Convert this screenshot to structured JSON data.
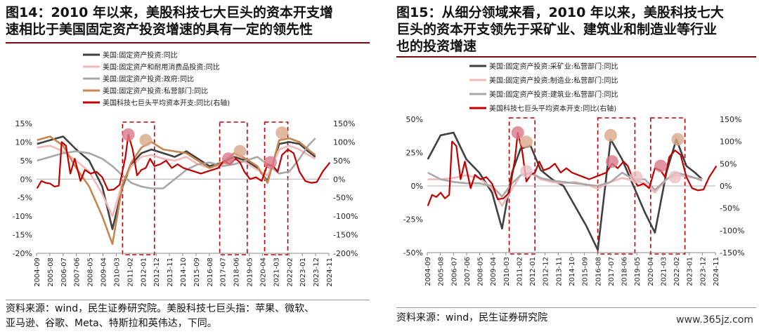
{
  "panels": [
    {
      "id": "left",
      "title_line1": "图14：2010 年以来，美股科技七大巨头的资本开支增",
      "title_line2": "速相比于美国固定资产投资增速的具有一定的领先性",
      "source_line1": "资料来源：wind，民生证券研究院。美股科技七巨头指：苹果、微软、",
      "source_line2": "亚马逊、谷歌、Meta、特斯拉和英伟达，下同。"
    },
    {
      "id": "right",
      "title_line1": "图15：从细分领域来看，2010 年以来，美股科技七大",
      "title_line2": "巨头的资本开支领先于采矿业、建筑业和制造业等行业",
      "title_line3": "也的投资增速",
      "source_line1": "资料来源：wind，民生证券研究院",
      "watermark": "www.365jz.com"
    }
  ],
  "chart_data": [
    {
      "type": "line",
      "ylim": [
        -20,
        15
      ],
      "yticks": [
        "15%",
        "10%",
        "5%",
        "0%",
        "-5%",
        "-10%",
        "-15%",
        "-20%"
      ],
      "y2lim": [
        -200,
        150
      ],
      "y2ticks": [
        "150%",
        "100%",
        "50%",
        "0%",
        "-50%",
        "-100%",
        "-150%",
        "-200%"
      ],
      "xticks": [
        "2004-09",
        "2005-08",
        "2006-07",
        "2007-06",
        "2008-05",
        "2009-04",
        "2010-03",
        "2011-02",
        "2012-01",
        "2012-12",
        "2013-11",
        "2014-10",
        "2015-09",
        "2016-08",
        "2017-07",
        "2018-06",
        "2019-05",
        "2020-04",
        "2021-03",
        "2022-02",
        "2023-01",
        "2023-12",
        "2024-11"
      ],
      "legend": "top-left",
      "series": [
        {
          "name": "美国:固定资产投资:同比",
          "color": "#404040",
          "axis": "left",
          "x": [
            2004.7,
            2005.6,
            2006.5,
            2007.4,
            2008.3,
            2009.2,
            2009.9,
            2010.6,
            2011.2,
            2011.9,
            2012.6,
            2013.4,
            2014.2,
            2015.0,
            2015.8,
            2016.6,
            2017.5,
            2018.3,
            2019.1,
            2019.9,
            2020.6,
            2021.4,
            2022.1,
            2022.8,
            2023.4,
            2023.9
          ],
          "y": [
            9.5,
            10.5,
            11.5,
            8.0,
            5.0,
            -2.0,
            -13.5,
            -2.0,
            4.0,
            7.0,
            8.0,
            7.0,
            6.0,
            7.5,
            5.5,
            3.5,
            4.5,
            6.0,
            5.0,
            3.0,
            -0.5,
            9.5,
            10.0,
            9.5,
            7.5,
            6.0
          ]
        },
        {
          "name": "美国:固定资产和耐用消费品投资:同比",
          "color": "#f2b7b7",
          "axis": "left",
          "x": [
            2004.7,
            2005.6,
            2006.5,
            2007.4,
            2008.3,
            2009.2,
            2009.9,
            2010.6,
            2011.2,
            2011.9,
            2012.6,
            2013.4,
            2014.2,
            2015.0,
            2015.8,
            2016.6,
            2017.5,
            2018.3,
            2019.1,
            2019.9,
            2020.6,
            2021.4,
            2022.1,
            2022.8,
            2023.4,
            2023.9
          ],
          "y": [
            8.5,
            9.0,
            7.5,
            5.0,
            2.0,
            -4.0,
            -10.0,
            -1.0,
            3.5,
            6.0,
            6.5,
            5.5,
            5.0,
            6.0,
            4.0,
            3.0,
            4.0,
            5.5,
            4.5,
            2.5,
            1.0,
            8.0,
            9.0,
            8.0,
            6.5,
            5.5
          ]
        },
        {
          "name": "美国:固定资产投资:政府:同比",
          "color": "#a8a8a8",
          "axis": "left",
          "x": [
            2004.7,
            2005.6,
            2006.5,
            2007.4,
            2008.3,
            2009.2,
            2009.9,
            2010.6,
            2011.2,
            2011.9,
            2012.6,
            2013.4,
            2014.2,
            2015.0,
            2015.8,
            2016.6,
            2017.5,
            2018.3,
            2019.1,
            2019.9,
            2020.6,
            2021.4,
            2022.1,
            2022.8,
            2023.4,
            2023.9
          ],
          "y": [
            5.0,
            6.0,
            7.0,
            7.5,
            7.0,
            5.5,
            3.5,
            1.0,
            -1.0,
            -2.0,
            -2.5,
            -2.5,
            0.0,
            2.5,
            4.0,
            4.5,
            3.5,
            4.0,
            5.0,
            6.0,
            4.0,
            1.5,
            2.0,
            5.5,
            9.0,
            11.0
          ]
        },
        {
          "name": "美国:固定资产投资:私营部门:同比",
          "color": "#c58550",
          "axis": "left",
          "x": [
            2004.7,
            2005.6,
            2006.5,
            2007.4,
            2008.3,
            2009.2,
            2009.9,
            2010.6,
            2011.2,
            2011.9,
            2012.6,
            2013.4,
            2014.2,
            2015.0,
            2015.8,
            2016.6,
            2017.5,
            2018.3,
            2019.1,
            2019.9,
            2020.6,
            2021.4,
            2022.1,
            2022.8,
            2023.4,
            2023.9
          ],
          "y": [
            10.5,
            11.5,
            9.0,
            3.0,
            -2.0,
            -10.0,
            -17.5,
            -1.5,
            4.5,
            8.5,
            10.0,
            8.0,
            7.5,
            7.0,
            5.0,
            3.0,
            4.5,
            7.0,
            5.5,
            3.5,
            -1.0,
            10.5,
            11.0,
            10.0,
            8.0,
            6.5
          ]
        },
        {
          "name": "美国科技七巨头平均资本开支:同比(右轴)",
          "color": "#c00000",
          "axis": "right",
          "x": [
            2004.7,
            2005.0,
            2005.3,
            2005.6,
            2005.9,
            2006.2,
            2006.4,
            2006.7,
            2007.0,
            2007.3,
            2007.7,
            2008.0,
            2008.4,
            2008.8,
            2009.2,
            2009.6,
            2010.0,
            2010.4,
            2010.8,
            2011.0,
            2011.3,
            2011.6,
            2011.9,
            2012.2,
            2012.5,
            2012.8,
            2013.2,
            2013.6,
            2014.0,
            2014.4,
            2014.8,
            2015.2,
            2015.6,
            2016.0,
            2016.4,
            2016.8,
            2017.2,
            2017.6,
            2018.0,
            2018.4,
            2018.7,
            2019.0,
            2019.4,
            2019.8,
            2020.2,
            2020.6,
            2021.0,
            2021.3,
            2021.6,
            2022.0,
            2022.4,
            2022.8,
            2023.2,
            2023.6,
            2024.0,
            2024.4,
            2024.9
          ],
          "y": [
            -25,
            -5,
            -10,
            -12,
            -20,
            -18,
            100,
            90,
            15,
            55,
            -5,
            25,
            15,
            20,
            5,
            -30,
            -28,
            -15,
            60,
            120,
            80,
            10,
            25,
            30,
            55,
            35,
            40,
            50,
            30,
            40,
            30,
            25,
            20,
            15,
            20,
            25,
            30,
            50,
            40,
            55,
            45,
            20,
            0,
            5,
            -5,
            40,
            35,
            20,
            65,
            80,
            70,
            20,
            -5,
            -10,
            -8,
            20,
            45
          ]
        }
      ],
      "markers": [
        {
          "x": 2011.0,
          "y": 120,
          "axis": "right",
          "color": "#d9788a"
        },
        {
          "x": 2012.2,
          "y": 10.5,
          "axis": "left",
          "color": "#d9a889"
        },
        {
          "x": 2017.9,
          "y": 55,
          "axis": "right",
          "color": "#d9788a"
        },
        {
          "x": 2018.7,
          "y": 7.5,
          "axis": "left",
          "color": "#d9a889"
        },
        {
          "x": 2020.8,
          "y": 45,
          "axis": "right",
          "color": "#d9788a"
        },
        {
          "x": 2021.6,
          "y": 12.5,
          "axis": "left",
          "color": "#d9a889"
        }
      ],
      "highlight_boxes": [
        [
          2010.6,
          2012.8
        ],
        [
          2017.3,
          2019.2
        ],
        [
          2020.4,
          2022.0
        ]
      ]
    },
    {
      "type": "line",
      "ylim": [
        -50,
        50
      ],
      "yticks": [
        "50%",
        "25%",
        "0%",
        "-25%",
        "-50%"
      ],
      "y2lim": [
        -150,
        150
      ],
      "y2ticks": [
        "150%",
        "100%",
        "50%",
        "0%",
        "-50%",
        "-100%",
        "-150%"
      ],
      "xticks": [
        "2004-09",
        "2005-08",
        "2006-07",
        "2007-06",
        "2008-05",
        "2009-04",
        "2010-03",
        "2011-02",
        "2012-01",
        "2012-12",
        "2013-11",
        "2014-10",
        "2015-09",
        "2016-08",
        "2017-07",
        "2018-06",
        "2019-05",
        "2020-04",
        "2021-03",
        "2022-02",
        "2023-01",
        "2023-12",
        "2024-11"
      ],
      "legend": "top-left",
      "series": [
        {
          "name": "美国:固定资产投资:采矿业:私营部门:同比",
          "color": "#404040",
          "axis": "left",
          "x": [
            2004.7,
            2005.6,
            2006.5,
            2007.4,
            2008.3,
            2009.2,
            2009.9,
            2010.6,
            2011.2,
            2011.9,
            2012.6,
            2013.4,
            2014.2,
            2015.0,
            2015.8,
            2016.6,
            2017.5,
            2018.3,
            2019.1,
            2019.9,
            2020.6,
            2021.4,
            2022.1,
            2022.8,
            2023.4,
            2023.9
          ],
          "y": [
            20,
            38,
            40,
            20,
            10,
            -5,
            -32,
            10,
            28,
            30,
            12,
            5,
            0,
            -15,
            -30,
            -48,
            35,
            20,
            0,
            -20,
            -35,
            10,
            35,
            15,
            10,
            5
          ]
        },
        {
          "name": "美国:固定资产投资:制造业:私营部门:同比",
          "color": "#f2b7b7",
          "axis": "left",
          "x": [
            2004.7,
            2005.6,
            2006.5,
            2007.4,
            2008.3,
            2009.2,
            2009.9,
            2010.6,
            2011.2,
            2011.9,
            2012.6,
            2013.4,
            2014.2,
            2015.0,
            2015.8,
            2016.6,
            2017.5,
            2018.3,
            2019.1,
            2019.9,
            2020.6,
            2021.4,
            2022.1,
            2022.8,
            2023.4,
            2023.9
          ],
          "y": [
            5,
            5,
            6,
            8,
            6,
            -2,
            -15,
            -2,
            8,
            10,
            5,
            3,
            2,
            3,
            1,
            -2,
            3,
            6,
            4,
            2,
            -5,
            5,
            8,
            7,
            6,
            5
          ]
        },
        {
          "name": "美国:固定资产投资:建筑业:私营部门:同比",
          "color": "#a8a8a8",
          "axis": "left",
          "x": [
            2004.7,
            2005.6,
            2006.5,
            2007.4,
            2008.3,
            2009.2,
            2009.9,
            2010.6,
            2011.2,
            2011.9,
            2012.6,
            2013.4,
            2014.2,
            2015.0,
            2015.8,
            2016.6,
            2017.5,
            2018.3,
            2019.1,
            2019.9,
            2020.6,
            2021.4,
            2022.1,
            2022.8,
            2023.4,
            2023.9
          ],
          "y": [
            10,
            5,
            3,
            2,
            2,
            0,
            -8,
            2,
            8,
            10,
            6,
            4,
            3,
            2,
            1,
            0,
            3,
            10,
            5,
            5,
            -3,
            5,
            10,
            8,
            6,
            4
          ]
        },
        {
          "name": "美国科技七巨头平均资本开支:同比(右轴)",
          "color": "#c00000",
          "axis": "right",
          "x": [
            2004.7,
            2005.0,
            2005.3,
            2005.6,
            2005.9,
            2006.2,
            2006.4,
            2006.7,
            2007.0,
            2007.3,
            2007.7,
            2008.0,
            2008.4,
            2008.8,
            2009.2,
            2009.6,
            2010.0,
            2010.4,
            2010.8,
            2011.0,
            2011.3,
            2011.6,
            2011.9,
            2012.2,
            2012.5,
            2012.8,
            2013.2,
            2013.6,
            2014.0,
            2014.4,
            2014.8,
            2015.2,
            2015.6,
            2016.0,
            2016.4,
            2016.8,
            2017.2,
            2017.6,
            2018.0,
            2018.4,
            2018.7,
            2019.0,
            2019.4,
            2019.8,
            2020.2,
            2020.6,
            2021.0,
            2021.3,
            2021.6,
            2022.0,
            2022.4,
            2022.8,
            2023.2,
            2023.6,
            2024.0,
            2024.4,
            2024.9
          ],
          "y": [
            -45,
            -20,
            -25,
            -15,
            -28,
            -20,
            100,
            90,
            15,
            55,
            -5,
            25,
            15,
            20,
            5,
            -30,
            -28,
            -15,
            60,
            120,
            80,
            10,
            25,
            30,
            55,
            35,
            40,
            50,
            30,
            40,
            30,
            25,
            20,
            15,
            20,
            25,
            30,
            50,
            40,
            55,
            45,
            20,
            0,
            5,
            -5,
            40,
            35,
            20,
            65,
            80,
            70,
            20,
            -5,
            -10,
            -8,
            20,
            45
          ]
        }
      ],
      "markers": [
        {
          "x": 2011.0,
          "y": 120,
          "axis": "right",
          "color": "#d9788a"
        },
        {
          "x": 2011.6,
          "y": 33,
          "axis": "left",
          "color": "#d9a889"
        },
        {
          "x": 2011.6,
          "y": 33,
          "axis": "right",
          "color": "#e9c0c4"
        },
        {
          "x": 2017.5,
          "y": 38,
          "axis": "left",
          "color": "#d9a889"
        },
        {
          "x": 2017.6,
          "y": 55,
          "axis": "right",
          "color": "#d9788a"
        },
        {
          "x": 2019.3,
          "y": 20,
          "axis": "right",
          "color": "#e9c0c4"
        },
        {
          "x": 2021.0,
          "y": 45,
          "axis": "right",
          "color": "#d9788a"
        },
        {
          "x": 2022.2,
          "y": 35,
          "axis": "left",
          "color": "#d9a889"
        },
        {
          "x": 2022.0,
          "y": 20,
          "axis": "right",
          "color": "#e9c0c4"
        }
      ],
      "highlight_boxes": [
        [
          2010.4,
          2012.2
        ],
        [
          2016.6,
          2019.2
        ],
        [
          2020.3,
          2022.7
        ]
      ]
    }
  ]
}
